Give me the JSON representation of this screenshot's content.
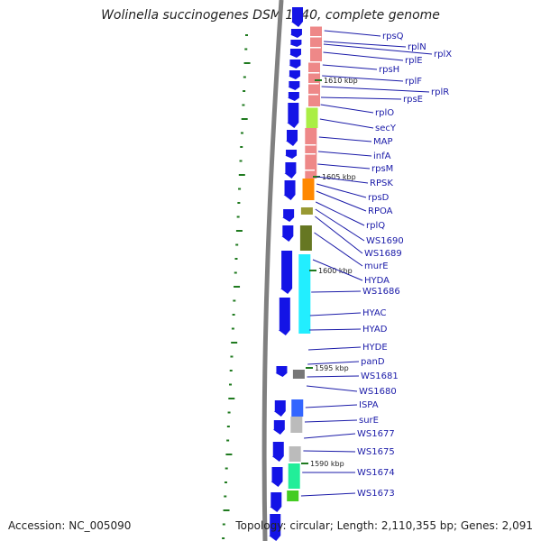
{
  "title": "Wolinella succinogenes DSM 1740, complete genome",
  "footer": {
    "accession": "Accession: NC_005090",
    "summary": "Topology: circular; Length: 2,110,355 bp; Genes: 2,091"
  },
  "colors": {
    "gene_arrow": "#1414e6",
    "label": "#1a1aa8",
    "backbone": "#808080",
    "gc_tick": "#1f7a1f",
    "ribosomal": "#ee8888",
    "secY": "#aaee44",
    "rpsD": "#ff8800",
    "rpoA": "#999933",
    "murE": "#667722",
    "hydrogenase": "#22eeff",
    "panD": "#777777",
    "ispA": "#3366ff",
    "surE": "#bbbbbb",
    "ws1674": "#22ee99",
    "ws1673": "#44cc22"
  },
  "kbp_markers": [
    "1610 kbp",
    "1605 kbp",
    "1600 kbp",
    "1595 kbp",
    "1590 kbp"
  ],
  "genes": [
    "rpsQ",
    "rplN",
    "rplX",
    "rplE",
    "rpsH",
    "rplF",
    "rplR",
    "rpsE",
    "rplO",
    "secY",
    "MAP",
    "infA",
    "rpsM",
    "RPSK",
    "rpsD",
    "RPOA",
    "rplQ",
    "WS1690",
    "WS1689",
    "murE",
    "HYDA",
    "WS1686",
    "HYAC",
    "HYAD",
    "HYDE",
    "panD",
    "WS1681",
    "WS1680",
    "ISPA",
    "surE",
    "WS1677",
    "WS1675",
    "WS1674",
    "WS1673"
  ]
}
